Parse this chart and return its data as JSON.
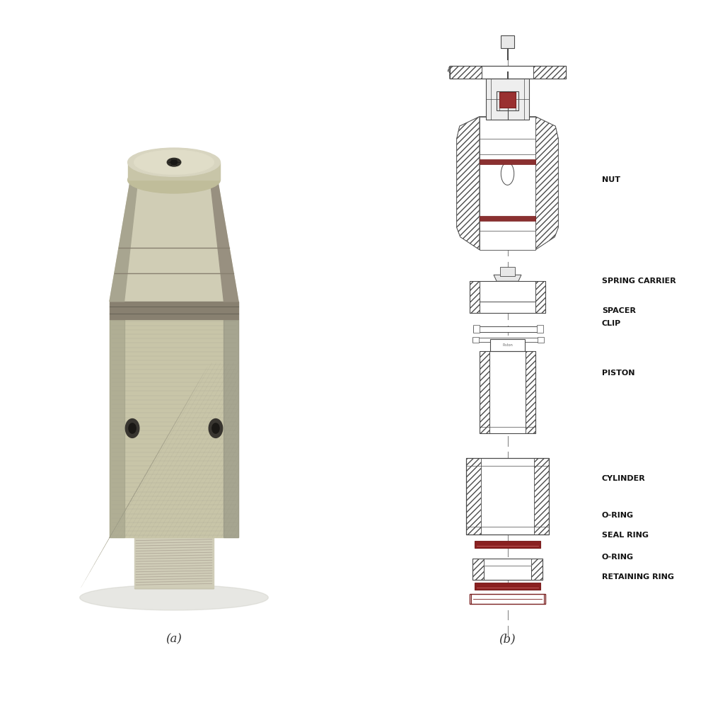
{
  "title_a": "(a)",
  "title_b": "(b)",
  "bg_color": "#ffffff",
  "lc": "#4a4a4a",
  "dc": "#7a2020",
  "label_data": [
    [
      "NUT",
      0.76
    ],
    [
      "SPRING CARRIER",
      0.6
    ],
    [
      "SPACER",
      0.553
    ],
    [
      "CLIP",
      0.533
    ],
    [
      "PISTON",
      0.455
    ],
    [
      "CYLINDER",
      0.288
    ],
    [
      "O-RING",
      0.23
    ],
    [
      "SEAL RING",
      0.198
    ],
    [
      "O-RING",
      0.164
    ],
    [
      "RETAINING RING",
      0.132
    ]
  ],
  "font_size_label": 8.0,
  "font_size_caption": 12
}
